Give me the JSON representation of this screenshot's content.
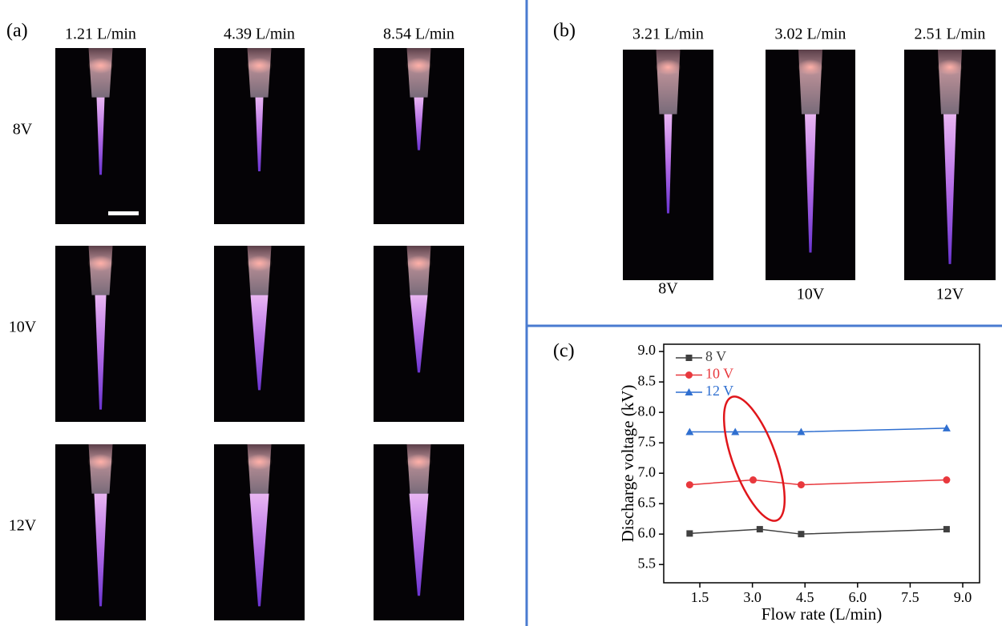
{
  "panel_a": {
    "label": "(a)",
    "columns": [
      "1.21 L/min",
      "4.39 L/min",
      "8.54 L/min"
    ],
    "rows": [
      "8V",
      "10V",
      "12V"
    ]
  },
  "panel_b": {
    "label": "(b)",
    "flows": [
      "3.21 L/min",
      "3.02 L/min",
      "2.51 L/min"
    ],
    "voltages": [
      "8V",
      "10V",
      "12V"
    ]
  },
  "chart_data": {
    "type": "line",
    "panel_label": "(c)",
    "x_label": "Flow rate (L/min)",
    "y_label": "Discharge voltage (kV)",
    "xlim": [
      0.47,
      9.48
    ],
    "ylim": [
      5.2,
      9.12
    ],
    "xticks": [
      1.5,
      {
        "value": 3.0,
        "label": "3.0"
      },
      4.5,
      {
        "value": 6.0,
        "label": "6.0"
      },
      7.5,
      {
        "value": 9.0,
        "label": "9.0"
      }
    ],
    "yticks": [
      5.5,
      {
        "value": 6.0,
        "label": "6.0"
      },
      6.5,
      {
        "value": 7.0,
        "label": "7.0"
      },
      7.5,
      {
        "value": 8.0,
        "label": "8.0"
      },
      8.5,
      {
        "value": 9.0,
        "label": "9.0"
      }
    ],
    "series": [
      {
        "name": "8 V",
        "color": "#404040",
        "marker": "square",
        "x": [
          1.21,
          3.21,
          4.39,
          8.54
        ],
        "values": [
          6.01,
          6.08,
          6.0,
          6.08
        ]
      },
      {
        "name": "10 V",
        "color": "#e8383d",
        "marker": "circle",
        "x": [
          1.21,
          3.02,
          4.39,
          8.54
        ],
        "values": [
          6.81,
          6.89,
          6.81,
          6.89
        ]
      },
      {
        "name": "12 V",
        "color": "#2f6fd0",
        "marker": "triangle",
        "x": [
          1.21,
          2.51,
          4.39,
          8.54
        ],
        "values": [
          7.68,
          7.68,
          7.68,
          7.74
        ]
      }
    ]
  }
}
